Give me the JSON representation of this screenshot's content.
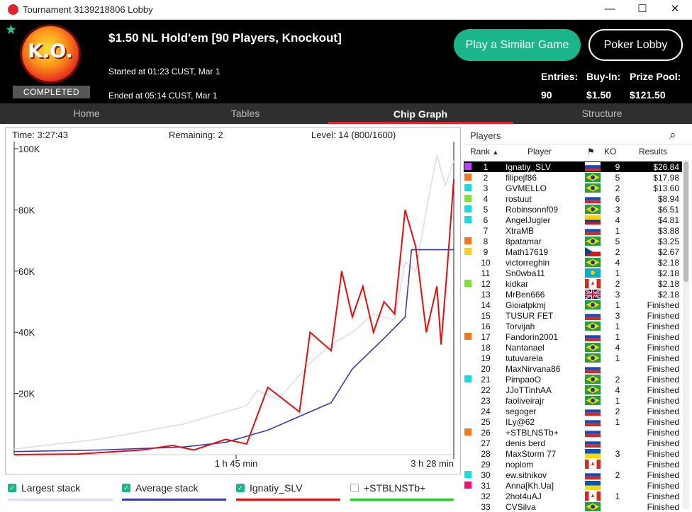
{
  "window": {
    "title": "Tournament 3139218806 Lobby",
    "minimize": "—",
    "maximize": "☐",
    "close": "✕"
  },
  "header": {
    "badge": "K.O.",
    "status": "COMPLETED",
    "title": "$1.50 NL Hold'em [90 Players, Knockout]",
    "started": "Started at 01:23 CUST, Mar 1",
    "ended": "Ended at 05:14 CUST, Mar 1",
    "play_similar": "Play a Similar Game",
    "poker_lobby": "Poker Lobby",
    "entries_label": "Entries:",
    "entries": "90",
    "buyin_label": "Buy-In:",
    "buyin": "$1.50",
    "prize_label": "Prize Pool:",
    "prize": "$121.50"
  },
  "tabs": [
    "Home",
    "Tables",
    "Chip Graph",
    "Structure"
  ],
  "chart_info": {
    "time": "Time: 3:27:43",
    "remaining": "Remaining: 2",
    "level": "Level: 14 (800/1600)"
  },
  "chart_data": {
    "type": "line",
    "ylabel": "",
    "yticks": [
      "100K",
      "80K",
      "60K",
      "40K",
      "20K"
    ],
    "ylim": [
      0,
      100000
    ],
    "xticks": [
      "1 h 45 min",
      "3 h 28 min"
    ],
    "x_unit": "minutes",
    "xlim": [
      0,
      208
    ],
    "series": [
      {
        "name": "Largest stack",
        "color": "#dcdcf0",
        "x": [
          0,
          20,
          40,
          60,
          80,
          100,
          110,
          115,
          125,
          140,
          150,
          160,
          170,
          180,
          185,
          190,
          195,
          200,
          204,
          208
        ],
        "values": [
          1800,
          3500,
          5000,
          7500,
          10000,
          14000,
          16000,
          21000,
          18000,
          30000,
          36000,
          40000,
          46000,
          44000,
          63000,
          60000,
          80000,
          98000,
          88000,
          96000
        ]
      },
      {
        "name": "Average stack",
        "color": "#3a3ab0",
        "x": [
          0,
          40,
          80,
          100,
          120,
          140,
          150,
          160,
          175,
          185,
          188,
          200,
          208
        ],
        "values": [
          1000,
          1500,
          2500,
          4000,
          8000,
          14000,
          17000,
          28000,
          38000,
          45000,
          67000,
          67000,
          67000
        ]
      },
      {
        "name": "Ignatiy_SLV",
        "color": "#e01010",
        "x": [
          0,
          30,
          60,
          75,
          85,
          100,
          110,
          120,
          135,
          140,
          150,
          155,
          160,
          165,
          170,
          175,
          180,
          185,
          190,
          195,
          200,
          202,
          205,
          208
        ],
        "values": [
          0,
          200,
          1500,
          3000,
          1500,
          5000,
          3500,
          22000,
          14000,
          40000,
          34000,
          60000,
          45000,
          55000,
          40000,
          50000,
          46000,
          80000,
          68000,
          40000,
          55000,
          36000,
          62000,
          90000
        ]
      },
      {
        "name": "+STBLNSTb+",
        "color": "#22cc22",
        "x": [],
        "values": []
      }
    ]
  },
  "legend": [
    {
      "label": "Largest stack",
      "checked": true
    },
    {
      "label": "Average stack",
      "checked": true
    },
    {
      "label": "Ignatiy_SLV",
      "checked": true
    },
    {
      "label": "+STBLNSTb+",
      "checked": false
    }
  ],
  "players": {
    "title": "Players",
    "search_icon": "⌕",
    "col_rank": "Rank",
    "col_player": "Player",
    "col_flag": "⚑",
    "col_ko": "KO",
    "col_results": "Results",
    "rows": [
      {
        "rank": "1",
        "name": "Ignatiy_SLV",
        "flag": "ru",
        "ko": "9",
        "result": "$26.84",
        "sw": "#c040ff"
      },
      {
        "rank": "2",
        "name": "filipejf86",
        "flag": "br",
        "ko": "5",
        "result": "$17.98",
        "sw": "#f07820"
      },
      {
        "rank": "3",
        "name": "GVMELLO",
        "flag": "br",
        "ko": "2",
        "result": "$13.60",
        "sw": "#20d8e0"
      },
      {
        "rank": "4",
        "name": "rostuut",
        "flag": "ru",
        "ko": "6",
        "result": "$8.94",
        "sw": "#80e040"
      },
      {
        "rank": "5",
        "name": "Robinsonnf09",
        "flag": "br",
        "ko": "3",
        "result": "$6.51",
        "sw": "#20d8e0"
      },
      {
        "rank": "6",
        "name": "AngelJugler",
        "flag": "co",
        "ko": "4",
        "result": "$4.81",
        "sw": "#20d8e0"
      },
      {
        "rank": "7",
        "name": "XtraMB",
        "flag": "ru",
        "ko": "1",
        "result": "$3.88",
        "sw": ""
      },
      {
        "rank": "8",
        "name": "8patamar",
        "flag": "br",
        "ko": "5",
        "result": "$3.25",
        "sw": "#f07820"
      },
      {
        "rank": "9",
        "name": "Math17619",
        "flag": "cz",
        "ko": "2",
        "result": "$2.67",
        "sw": "#f0d020"
      },
      {
        "rank": "10",
        "name": "victorreghin",
        "flag": "br",
        "ko": "4",
        "result": "$2.18",
        "sw": ""
      },
      {
        "rank": "11",
        "name": "Sn0wba11",
        "flag": "kz",
        "ko": "1",
        "result": "$2.18",
        "sw": ""
      },
      {
        "rank": "12",
        "name": "kidkar",
        "flag": "ca",
        "ko": "2",
        "result": "$2.18",
        "sw": "#80e040"
      },
      {
        "rank": "13",
        "name": "MrBen666",
        "flag": "gb",
        "ko": "3",
        "result": "$2.18",
        "sw": ""
      },
      {
        "rank": "14",
        "name": "Gioiatpkmj",
        "flag": "br",
        "ko": "1",
        "result": "Finished",
        "sw": ""
      },
      {
        "rank": "15",
        "name": "TUSUR FET",
        "flag": "ru",
        "ko": "3",
        "result": "Finished",
        "sw": ""
      },
      {
        "rank": "16",
        "name": "Torvijah",
        "flag": "br",
        "ko": "1",
        "result": "Finished",
        "sw": ""
      },
      {
        "rank": "17",
        "name": "Fandorin2001",
        "flag": "ru",
        "ko": "1",
        "result": "Finished",
        "sw": "#f07820"
      },
      {
        "rank": "18",
        "name": "Nantanael",
        "flag": "br",
        "ko": "4",
        "result": "Finished",
        "sw": ""
      },
      {
        "rank": "19",
        "name": "tutuvarela",
        "flag": "br",
        "ko": "1",
        "result": "Finished",
        "sw": ""
      },
      {
        "rank": "20",
        "name": "MaxNirvana86",
        "flag": "ru",
        "ko": "",
        "result": "Finished",
        "sw": ""
      },
      {
        "rank": "21",
        "name": "PimpaoO",
        "flag": "br",
        "ko": "2",
        "result": "Finished",
        "sw": "#20d8e0"
      },
      {
        "rank": "22",
        "name": "JJoTTinhAA",
        "flag": "br",
        "ko": "4",
        "result": "Finished",
        "sw": ""
      },
      {
        "rank": "23",
        "name": "faoliveirajr",
        "flag": "br",
        "ko": "1",
        "result": "Finished",
        "sw": ""
      },
      {
        "rank": "24",
        "name": "segoger",
        "flag": "ru",
        "ko": "2",
        "result": "Finished",
        "sw": ""
      },
      {
        "rank": "25",
        "name": "ILy@62",
        "flag": "ru",
        "ko": "1",
        "result": "Finished",
        "sw": ""
      },
      {
        "rank": "26",
        "name": "+STBLNSTb+",
        "flag": "ru",
        "ko": "",
        "result": "Finished",
        "sw": "#f07820"
      },
      {
        "rank": "27",
        "name": "denis berd",
        "flag": "ru",
        "ko": "",
        "result": "Finished",
        "sw": ""
      },
      {
        "rank": "28",
        "name": "MaxStorm 77",
        "flag": "ua",
        "ko": "3",
        "result": "Finished",
        "sw": ""
      },
      {
        "rank": "29",
        "name": "noplom",
        "flag": "ca",
        "ko": "",
        "result": "Finished",
        "sw": ""
      },
      {
        "rank": "30",
        "name": "ew.sitnikov",
        "flag": "ru",
        "ko": "2",
        "result": "Finished",
        "sw": "#20d8e0"
      },
      {
        "rank": "31",
        "name": "Anna[Kh.Ua]",
        "flag": "ua",
        "ko": "",
        "result": "Finished",
        "sw": "#f01070"
      },
      {
        "rank": "32",
        "name": "2hot4uAJ",
        "flag": "ca",
        "ko": "1",
        "result": "Finished",
        "sw": ""
      },
      {
        "rank": "33",
        "name": "CVSilva",
        "flag": "br",
        "ko": "",
        "result": "Finished",
        "sw": ""
      }
    ]
  }
}
